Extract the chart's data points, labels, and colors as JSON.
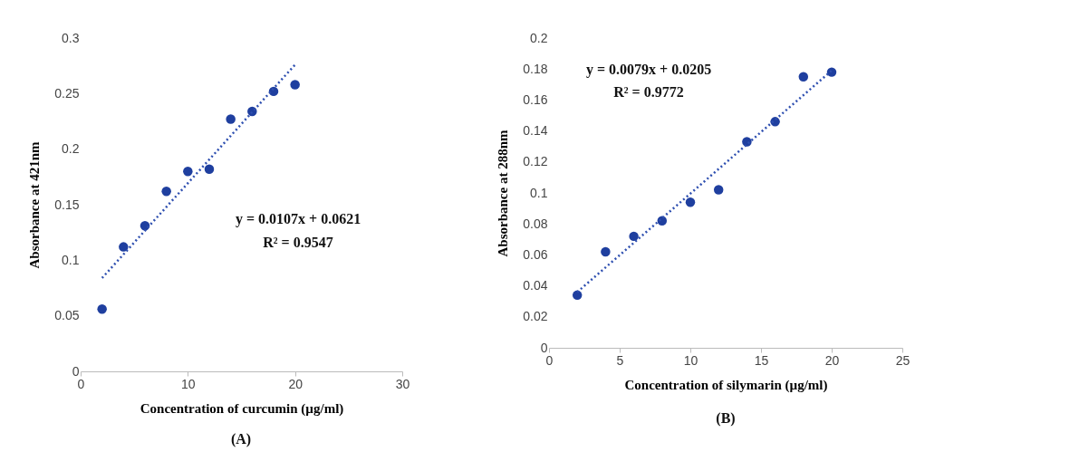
{
  "chart_data": [
    {
      "type": "scatter",
      "xlabel": "Concentration of curcumin (µg/ml)",
      "ylabel": "Absorbance at 421nm",
      "xlim": [
        0,
        30
      ],
      "xticks": [
        0,
        10,
        20,
        30
      ],
      "ylim": [
        0,
        0.3
      ],
      "yticks": [
        0,
        0.05,
        0.1,
        0.15,
        0.2,
        0.25,
        0.3
      ],
      "grid": false,
      "series": [
        {
          "color": "#1f3f9f",
          "marker": "circle",
          "x": [
            2,
            4,
            6,
            8,
            10,
            12,
            14,
            16,
            18,
            20
          ],
          "values": [
            0.056,
            0.112,
            0.131,
            0.162,
            0.18,
            0.182,
            0.227,
            0.234,
            0.252,
            0.258
          ]
        },
        {
          "type": "line",
          "line_style": "dotted",
          "color": "#2e4fb0",
          "x": [
            2,
            20
          ],
          "values": [
            0.084,
            0.276
          ]
        }
      ],
      "annotations": [
        "y = 0.0107x + 0.0621",
        "R² = 0.9547",
        "(A)"
      ]
    },
    {
      "type": "scatter",
      "xlabel": "Concentration of silymarin (µg/ml)",
      "ylabel": "Absorbance at 288nm",
      "xlim": [
        0,
        25
      ],
      "xticks": [
        0,
        5,
        10,
        15,
        20,
        25
      ],
      "ylim": [
        0,
        0.2
      ],
      "yticks": [
        0,
        0.02,
        0.04,
        0.06,
        0.08,
        0.1,
        0.12,
        0.14,
        0.16,
        0.18,
        0.2
      ],
      "grid": false,
      "series": [
        {
          "color": "#1f3f9f",
          "marker": "circle",
          "x": [
            2,
            4,
            6,
            8,
            10,
            12,
            14,
            16,
            18,
            20
          ],
          "values": [
            0.034,
            0.062,
            0.072,
            0.082,
            0.094,
            0.102,
            0.133,
            0.146,
            0.175,
            0.178
          ]
        },
        {
          "type": "line",
          "line_style": "dotted",
          "color": "#2e4fb0",
          "x": [
            2,
            20
          ],
          "values": [
            0.036,
            0.179
          ]
        }
      ],
      "annotations": [
        "y = 0.0079x + 0.0205",
        "R² = 0.9772",
        "(B)"
      ]
    }
  ]
}
